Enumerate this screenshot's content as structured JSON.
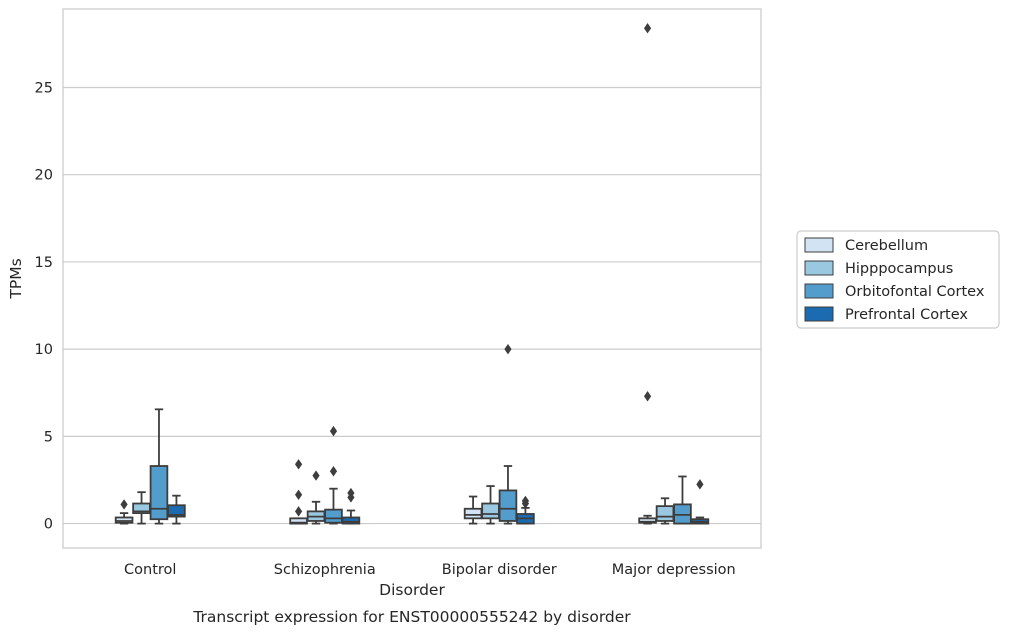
{
  "chart_data": {
    "type": "boxplot",
    "caption": "Transcript expression for ENST00000555242 by disorder",
    "xlabel": "Disorder",
    "ylabel": "TPMs",
    "ylim": [
      -1.4,
      29.5
    ],
    "yticks": [
      0,
      5,
      10,
      15,
      20,
      25
    ],
    "grid": "horizontal",
    "legend_position": "right",
    "categories": [
      "Control",
      "Schizophrenia",
      "Bipolar disorder",
      "Major depression"
    ],
    "series": [
      {
        "name": "Cerebellum",
        "color": "#d2e3f3",
        "boxes": [
          {
            "whislo": 0.0,
            "q1": 0.05,
            "med": 0.15,
            "q3": 0.35,
            "whishi": 0.6,
            "fliers": [
              1.1
            ]
          },
          {
            "whislo": 0.0,
            "q1": 0.0,
            "med": 0.05,
            "q3": 0.3,
            "whishi": 0.3,
            "fliers": [
              0.7,
              1.65,
              3.4
            ]
          },
          {
            "whislo": 0.0,
            "q1": 0.3,
            "med": 0.5,
            "q3": 0.85,
            "whishi": 1.55,
            "fliers": []
          },
          {
            "whislo": 0.0,
            "q1": 0.05,
            "med": 0.1,
            "q3": 0.3,
            "whishi": 0.45,
            "fliers": [
              7.3,
              28.4
            ]
          }
        ]
      },
      {
        "name": "Hipppocampus",
        "color": "#9ac8e0",
        "boxes": [
          {
            "whislo": 0.0,
            "q1": 0.6,
            "med": 0.7,
            "q3": 1.15,
            "whishi": 1.8,
            "fliers": []
          },
          {
            "whislo": 0.0,
            "q1": 0.15,
            "med": 0.4,
            "q3": 0.7,
            "whishi": 1.25,
            "fliers": [
              2.75
            ]
          },
          {
            "whislo": 0.0,
            "q1": 0.3,
            "med": 0.55,
            "q3": 1.15,
            "whishi": 2.15,
            "fliers": []
          },
          {
            "whislo": 0.0,
            "q1": 0.15,
            "med": 0.4,
            "q3": 1.0,
            "whishi": 1.45,
            "fliers": []
          }
        ]
      },
      {
        "name": "Orbitofontal Cortex",
        "color": "#529dcc",
        "boxes": [
          {
            "whislo": 0.0,
            "q1": 0.25,
            "med": 0.85,
            "q3": 3.3,
            "whishi": 6.55,
            "fliers": []
          },
          {
            "whislo": 0.0,
            "q1": 0.05,
            "med": 0.3,
            "q3": 0.8,
            "whishi": 2.0,
            "fliers": [
              3.0,
              5.3
            ]
          },
          {
            "whislo": 0.0,
            "q1": 0.15,
            "med": 0.85,
            "q3": 1.9,
            "whishi": 3.3,
            "fliers": [
              10.0
            ]
          },
          {
            "whislo": 0.0,
            "q1": 0.0,
            "med": 0.5,
            "q3": 1.1,
            "whishi": 2.7,
            "fliers": []
          }
        ]
      },
      {
        "name": "Prefrontal Cortex",
        "color": "#1c6aaf",
        "boxes": [
          {
            "whislo": 0.0,
            "q1": 0.4,
            "med": 0.5,
            "q3": 1.05,
            "whishi": 1.6,
            "fliers": []
          },
          {
            "whislo": 0.0,
            "q1": 0.0,
            "med": 0.1,
            "q3": 0.35,
            "whishi": 0.75,
            "fliers": [
              1.5,
              1.75
            ]
          },
          {
            "whislo": 0.0,
            "q1": 0.0,
            "med": 0.3,
            "q3": 0.55,
            "whishi": 0.9,
            "fliers": [
              1.15,
              1.3
            ]
          },
          {
            "whislo": 0.0,
            "q1": 0.0,
            "med": 0.1,
            "q3": 0.25,
            "whishi": 0.35,
            "fliers": [
              2.25
            ]
          }
        ]
      }
    ]
  }
}
